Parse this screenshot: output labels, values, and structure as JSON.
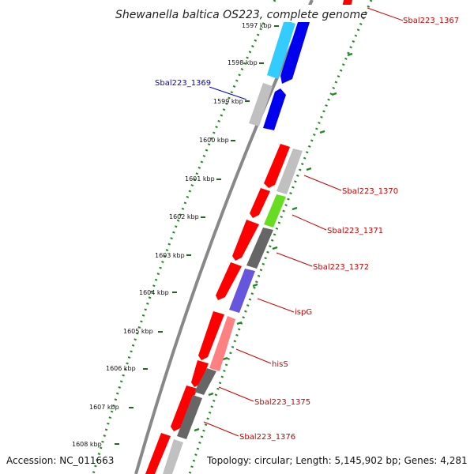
{
  "title": "Shewanella baltica OS223, complete genome",
  "footer": {
    "accession": "Accession: NC_011663",
    "summary": "Topology: circular; Length: 5,145,902 bp; Genes: 4,281"
  },
  "ticks": [
    "1597 kbp",
    "1598 kbp",
    "1599 kbp",
    "1600 kbp",
    "1601 kbp",
    "1602 kbp",
    "1603 kbp",
    "1604 kbp",
    "1605 kbp",
    "1606 kbp",
    "1607 kbp",
    "1608 kbp"
  ],
  "gene_labels": [
    {
      "name": "Sbal223_1367",
      "color": "#cc0000"
    },
    {
      "name": "Sbal223_1369",
      "color": "#0000cc"
    },
    {
      "name": "Sbal223_1370",
      "color": "#cc0000"
    },
    {
      "name": "Sbal223_1371",
      "color": "#cc0000"
    },
    {
      "name": "Sbal223_1372",
      "color": "#cc0000"
    },
    {
      "name": "ispG",
      "color": "#cc0000"
    },
    {
      "name": "hisS",
      "color": "#cc0000"
    },
    {
      "name": "Sbal223_1375",
      "color": "#cc0000"
    },
    {
      "name": "Sbal223_1376",
      "color": "#cc0000"
    }
  ],
  "colors": {
    "red": "#ff0000",
    "blue": "#0000ee",
    "lightblue": "#33ccff",
    "lightgray": "#c0c0c0",
    "darkgray": "#666666",
    "green": "#66dd22",
    "purple": "#6655dd",
    "pink": "#ff8080",
    "backbone": "#888888",
    "gc_dots": "#228822"
  }
}
